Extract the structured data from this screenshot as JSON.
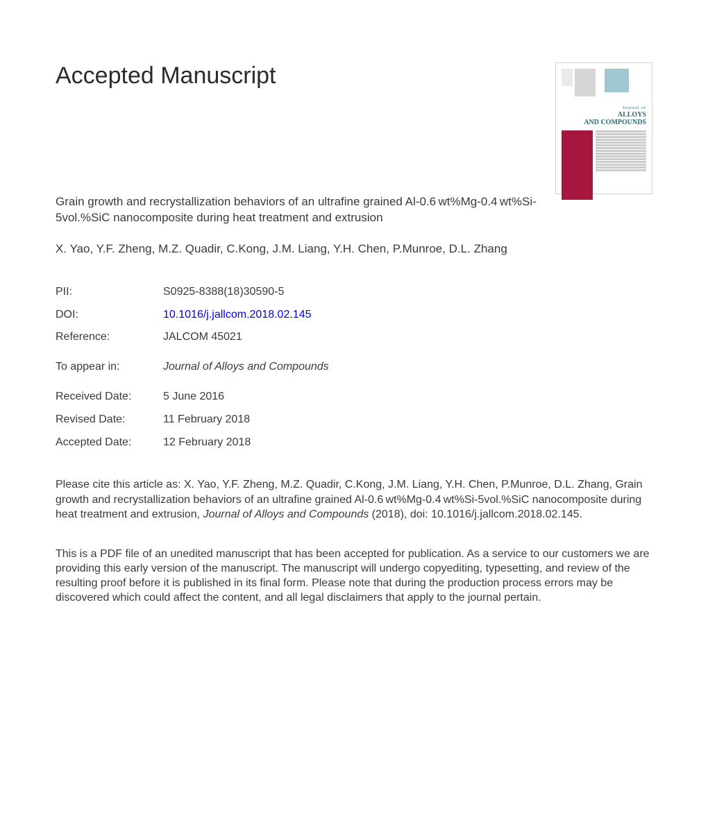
{
  "heading": "Accepted Manuscript",
  "article_title": "Grain growth and recrystallization behaviors of an ultrafine grained Al-0.6 wt%Mg-0.4 wt%Si-5vol.%SiC nanocomposite during heat treatment and extrusion",
  "authors": "X. Yao, Y.F. Zheng, M.Z. Quadir, C.Kong, J.M. Liang, Y.H. Chen, P.Munroe, D.L. Zhang",
  "meta": {
    "pii_label": "PII:",
    "pii_value": "S0925-8388(18)30590-5",
    "doi_label": "DOI:",
    "doi_value": "10.1016/j.jallcom.2018.02.145",
    "ref_label": "Reference:",
    "ref_value": "JALCOM 45021",
    "appear_label": "To appear in:",
    "appear_value": "Journal of Alloys and Compounds",
    "received_label": "Received Date:",
    "received_value": "5 June 2016",
    "revised_label": "Revised Date:",
    "revised_value": "11 February 2018",
    "accepted_label": "Accepted Date:",
    "accepted_value": "12 February 2018"
  },
  "citation_prefix": "Please cite this article as: X. Yao, Y.F. Zheng, M.Z. Quadir, C.Kong, J.M. Liang, Y.H. Chen, P.Munroe, D.L. Zhang, Grain growth and recrystallization behaviors of an ultrafine grained Al-0.6 wt%Mg-0.4 wt%Si-5vol.%SiC nanocomposite during heat treatment and extrusion, ",
  "citation_journal": "Journal of Alloys and Compounds",
  "citation_suffix": " (2018), doi: 10.1016/j.jallcom.2018.02.145.",
  "disclaimer": "This is a PDF file of an unedited manuscript that has been accepted for publication. As a service to our customers we are providing this early version of the manuscript. The manuscript will undergo copyediting, typesetting, and review of the resulting proof before it is published in its final form. Please note that during the production process errors may be discovered which could affect the content, and all legal disclaimers that apply to the journal pertain.",
  "cover": {
    "journal_of": "Journal of",
    "alloys": "ALLOYS",
    "compounds": "AND COMPOUNDS",
    "colors": {
      "accent": "#a6173f",
      "teal": "#9ec8cf",
      "title_color": "#2b6a72"
    }
  }
}
